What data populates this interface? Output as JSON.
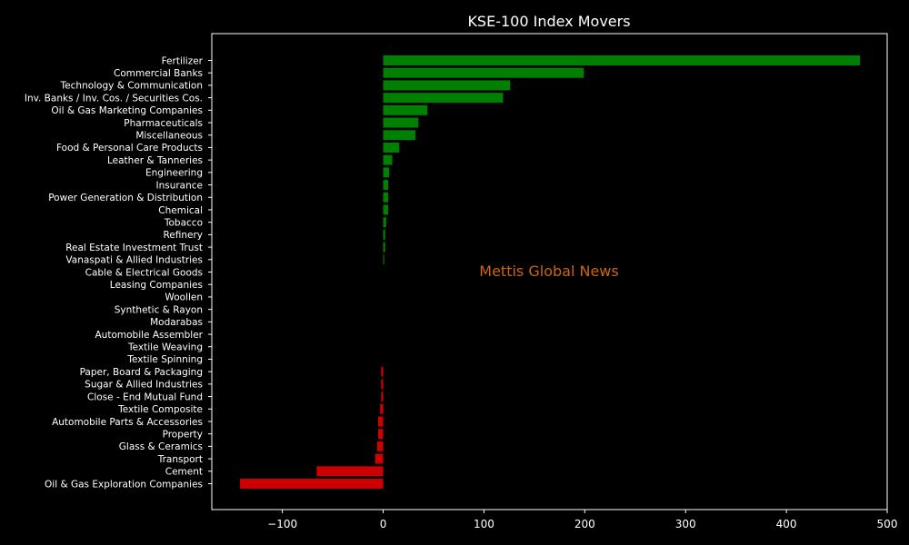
{
  "chart_data": {
    "type": "bar",
    "orientation": "horizontal",
    "title": "KSE-100 Index Movers",
    "xlabel": "",
    "ylabel": "",
    "xlim": [
      -170,
      500
    ],
    "x_ticks": [
      -100,
      0,
      100,
      200,
      300,
      400,
      500
    ],
    "x_tick_labels": [
      "−100",
      "0",
      "100",
      "200",
      "300",
      "400",
      "500"
    ],
    "grid": false,
    "watermark": "Mettis Global News",
    "colors": {
      "positive": "#008000",
      "negative": "#cc0000",
      "background": "#000000",
      "text": "#ffffff",
      "watermark": "#cc6611"
    },
    "categories": [
      "Fertilizer",
      "Commercial Banks",
      "Technology & Communication",
      "Inv. Banks / Inv. Cos. / Securities Cos.",
      "Oil & Gas Marketing Companies",
      "Pharmaceuticals",
      "Miscellaneous",
      "Food & Personal Care Products",
      "Leather & Tanneries",
      "Engineering",
      "Insurance",
      "Power Generation & Distribution",
      "Chemical",
      "Tobacco",
      "Refinery",
      "Real Estate Investment Trust",
      "Vanaspati & Allied Industries",
      "Cable & Electrical Goods",
      "Leasing Companies",
      "Woollen",
      "Synthetic & Rayon",
      "Modarabas",
      "Automobile Assembler",
      "Textile Weaving",
      "Textile Spinning",
      "Paper, Board & Packaging",
      "Sugar & Allied Industries",
      "Close - End Mutual Fund",
      "Textile Composite",
      "Automobile Parts & Accessories",
      "Property",
      "Glass & Ceramics",
      "Transport",
      "Cement",
      "Oil & Gas Exploration Companies"
    ],
    "values": [
      473,
      199,
      126,
      119,
      44,
      35,
      32,
      16,
      9,
      6,
      5,
      5,
      5,
      3,
      2,
      2,
      1,
      0,
      0,
      0,
      0,
      0,
      0,
      0,
      0,
      -2,
      -2,
      -2,
      -3,
      -5,
      -5,
      -6,
      -8,
      -66,
      -142
    ]
  }
}
